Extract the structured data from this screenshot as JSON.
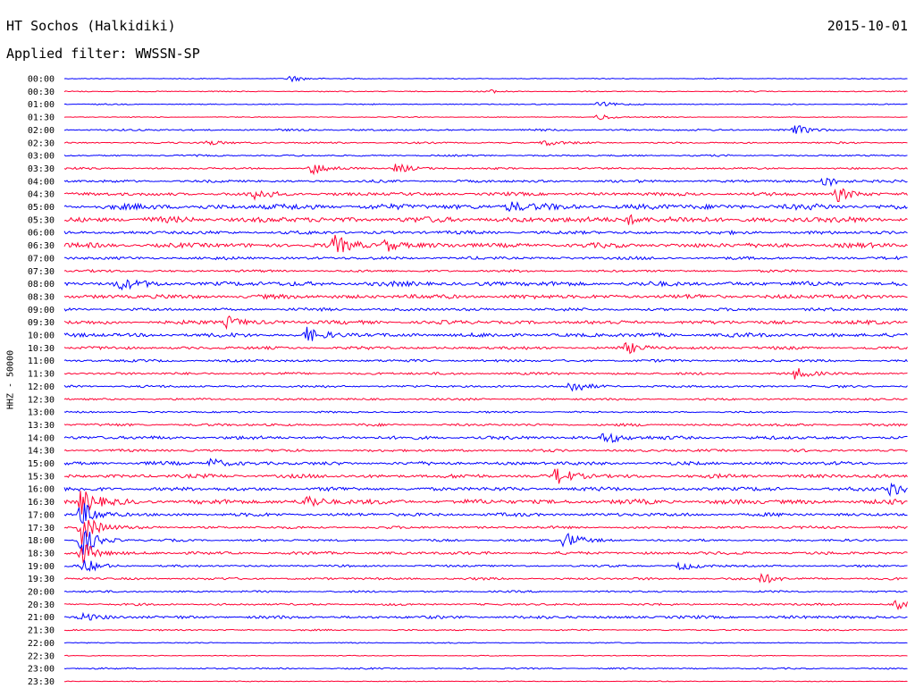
{
  "header": {
    "station": "HT Sochos (Halkidiki)",
    "date": "2015-10-01",
    "filter": "Applied filter: WWSSN-SP"
  },
  "colors": {
    "trace_a": "#0000ff",
    "trace_b": "#ff0033"
  },
  "chart_data": {
    "type": "line",
    "title": "HT Sochos (Halkidiki)",
    "subtitle": "Applied filter: WWSSN-SP",
    "ylabel": "HHZ - 50000",
    "xlabel": "",
    "grid": false,
    "legend": "none",
    "rows": [
      "00:00",
      "00:30",
      "01:00",
      "01:30",
      "02:00",
      "02:30",
      "03:00",
      "03:30",
      "04:00",
      "04:30",
      "05:00",
      "05:30",
      "06:00",
      "06:30",
      "07:00",
      "07:30",
      "08:00",
      "08:30",
      "09:00",
      "09:30",
      "10:00",
      "10:30",
      "11:00",
      "11:30",
      "12:00",
      "12:30",
      "13:00",
      "13:30",
      "14:00",
      "14:30",
      "15:00",
      "15:30",
      "16:00",
      "16:30",
      "17:00",
      "17:30",
      "18:00",
      "18:30",
      "19:00",
      "19:30",
      "20:00",
      "20:30",
      "21:00",
      "21:30",
      "22:00",
      "22:30",
      "23:00",
      "23:30"
    ],
    "row_colors": [
      "blue",
      "red"
    ],
    "noise_level": [
      0.4,
      0.5,
      0.5,
      0.4,
      0.9,
      0.8,
      0.8,
      0.9,
      1.2,
      1.6,
      2.6,
      2.6,
      1.6,
      2.2,
      1.4,
      1.1,
      2.2,
      2.0,
      1.4,
      1.8,
      1.9,
      1.4,
      1.2,
      1.2,
      1.1,
      1.0,
      0.8,
      1.2,
      1.6,
      1.2,
      1.6,
      1.8,
      1.8,
      2.2,
      1.6,
      1.2,
      1.1,
      1.4,
      1.0,
      1.1,
      0.9,
      1.0,
      1.4,
      0.7,
      0.5,
      0.4,
      0.7,
      0.4
    ],
    "events": [
      {
        "row": "00:00",
        "minute": 8,
        "amp": 4
      },
      {
        "row": "00:30",
        "minute": 15,
        "amp": 2
      },
      {
        "row": "01:00",
        "minute": 19,
        "amp": 3
      },
      {
        "row": "01:30",
        "minute": 19,
        "amp": 4
      },
      {
        "row": "02:00",
        "minute": 26,
        "amp": 5
      },
      {
        "row": "02:30",
        "minute": 5,
        "amp": 4
      },
      {
        "row": "02:30",
        "minute": 17,
        "amp": 4
      },
      {
        "row": "03:30",
        "minute": 8.8,
        "amp": 7
      },
      {
        "row": "03:30",
        "minute": 11.8,
        "amp": 6
      },
      {
        "row": "04:00",
        "minute": 27,
        "amp": 7
      },
      {
        "row": "04:30",
        "minute": 6.8,
        "amp": 6
      },
      {
        "row": "04:30",
        "minute": 27.5,
        "amp": 8
      },
      {
        "row": "05:00",
        "minute": 15.8,
        "amp": 6
      },
      {
        "row": "05:30",
        "minute": 20,
        "amp": 6
      },
      {
        "row": "06:30",
        "minute": 9.6,
        "amp": 10
      },
      {
        "row": "06:30",
        "minute": 11.4,
        "amp": 8
      },
      {
        "row": "08:00",
        "minute": 1.9,
        "amp": 6
      },
      {
        "row": "09:30",
        "minute": 5.8,
        "amp": 7
      },
      {
        "row": "10:00",
        "minute": 8.6,
        "amp": 8
      },
      {
        "row": "10:30",
        "minute": 20,
        "amp": 6
      },
      {
        "row": "11:30",
        "minute": 26,
        "amp": 6
      },
      {
        "row": "12:00",
        "minute": 18,
        "amp": 7
      },
      {
        "row": "14:00",
        "minute": 19.2,
        "amp": 8
      },
      {
        "row": "15:00",
        "minute": 5.2,
        "amp": 6
      },
      {
        "row": "15:30",
        "minute": 17.5,
        "amp": 10
      },
      {
        "row": "16:00",
        "minute": 29.4,
        "amp": 8
      },
      {
        "row": "16:30",
        "minute": 0.6,
        "amp": 14
      },
      {
        "row": "16:30",
        "minute": 8.6,
        "amp": 8
      },
      {
        "row": "17:00",
        "minute": 0.6,
        "amp": 14
      },
      {
        "row": "17:30",
        "minute": 0.6,
        "amp": 20
      },
      {
        "row": "18:00",
        "minute": 0.6,
        "amp": 18
      },
      {
        "row": "18:00",
        "minute": 17.8,
        "amp": 10
      },
      {
        "row": "18:30",
        "minute": 0.6,
        "amp": 14
      },
      {
        "row": "19:00",
        "minute": 0.7,
        "amp": 8
      },
      {
        "row": "19:00",
        "minute": 21.9,
        "amp": 5
      },
      {
        "row": "19:30",
        "minute": 24.8,
        "amp": 6
      },
      {
        "row": "20:30",
        "minute": 29.6,
        "amp": 5
      },
      {
        "row": "21:00",
        "minute": 0.6,
        "amp": 5
      }
    ]
  }
}
